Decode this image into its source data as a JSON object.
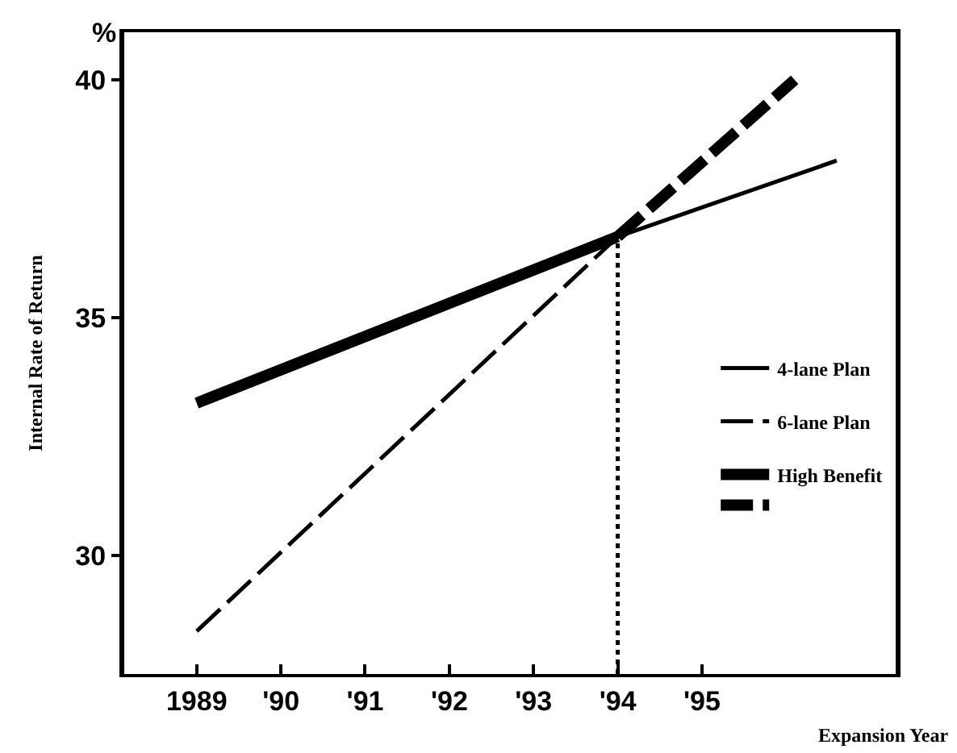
{
  "chart_data": {
    "type": "line",
    "xlabel": "Expansion Year",
    "ylabel": "Internal Rate of Return",
    "annotations": [
      "%"
    ],
    "xlim": [
      1988.14,
      1997.3
    ],
    "xticks": [
      1989,
      {
        "value": 1990,
        "label": "'90"
      },
      {
        "value": 1991,
        "label": "'91"
      },
      {
        "value": 1992,
        "label": "'92"
      },
      {
        "value": 1993,
        "label": "'93"
      },
      {
        "value": 1994,
        "label": "'94"
      },
      {
        "value": 1995,
        "label": "'95"
      }
    ],
    "ylim": [
      27.5,
      41.0
    ],
    "yticks": [
      30,
      35,
      40
    ],
    "series": [
      {
        "name": "4-lane Plan",
        "color": "#000000",
        "line_style": "solid",
        "x": [
          1994,
          1996.6
        ],
        "values": [
          36.7,
          38.3
        ]
      },
      {
        "name": "6-lane Plan",
        "color": "#000000",
        "line_style": "dashed",
        "x": [
          1989,
          1994
        ],
        "values": [
          28.4,
          36.7
        ]
      },
      {
        "name": "High Benefit",
        "color": "#000000",
        "line_style": "solid",
        "x": [
          1989,
          1994
        ],
        "values": [
          33.2,
          36.7
        ]
      },
      {
        "color": "#000000",
        "line_style": "dashed",
        "x": [
          1994,
          1996.1
        ],
        "values": [
          36.7,
          40.0
        ]
      }
    ],
    "ref_lines": [
      {
        "axis": "x",
        "value": 1994,
        "line_style": "dotted",
        "color": "#000000"
      }
    ],
    "legend": "right",
    "grid": false,
    "marker": "none"
  }
}
